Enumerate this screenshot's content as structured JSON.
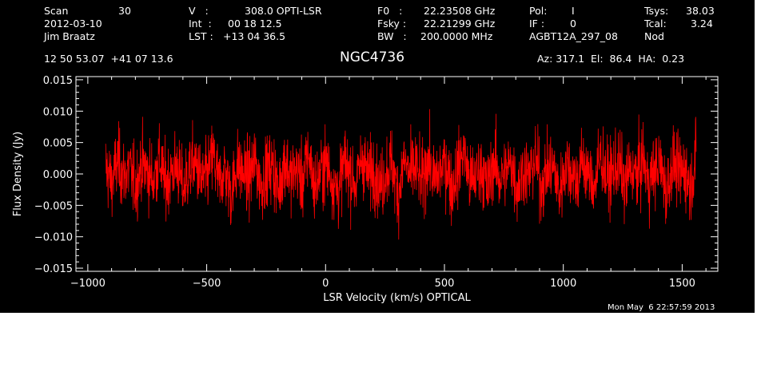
{
  "header": {
    "scan_label": "Scan",
    "scan_value": "30",
    "date": "2012-03-10",
    "observer": "Jim Braatz",
    "coords": "12 50 53.07  +41 07 13.6",
    "v_label": "V   :",
    "v_value": "308.0 OPTI-LSR",
    "int_label": "Int  :",
    "int_value": "00 18 12.5",
    "lst_label": "LST :",
    "lst_value": "+13 04 36.5",
    "f0_label": "F0   :",
    "f0_value": "22.23508 GHz",
    "fsky_label": "Fsky :",
    "fsky_value": "22.21299 GHz",
    "bw_label": "BW   :",
    "bw_value": "200.0000 MHz",
    "pol_label": "Pol:",
    "pol_value": "I",
    "if_label": "IF :",
    "if_value": "0",
    "project": "AGBT12A_297_08",
    "tsys_label": "Tsys:",
    "tsys_value": "38.03",
    "tcal_label": "Tcal:",
    "tcal_value": "3.24",
    "mode": "Nod",
    "pointing": "Az: 317.1  El:  86.4  HA:  0.23"
  },
  "timestamp": "Mon May  6 22:57:59 2013",
  "colors": {
    "background": "#000000",
    "axes": "#ffffff",
    "series": "#ff0000"
  },
  "chart_data": {
    "type": "line",
    "title": "NGC4736",
    "xlabel": "LSR Velocity (km/s) OPTICAL",
    "ylabel": "Flux Density (Jy)",
    "xlim": [
      -1050,
      1650
    ],
    "ylim": [
      -0.0155,
      0.0155
    ],
    "xticks": [
      -1000,
      -500,
      0,
      500,
      1000,
      1500
    ],
    "xtick_labels": [
      "−1000",
      "−500",
      "0",
      "500",
      "1000",
      "1500"
    ],
    "yticks": [
      -0.015,
      -0.01,
      -0.005,
      0.0,
      0.005,
      0.01,
      0.015
    ],
    "ytick_labels": [
      "−0.015",
      "−0.010",
      "−0.005",
      "0.000",
      "0.005",
      "0.010",
      "0.015"
    ],
    "grid": false,
    "series": [
      {
        "x_start": -925,
        "x_end": 1560,
        "description_noise_sigma": 0.0033,
        "values": [
          0.0031,
          -0.0042,
          0.0058,
          -0.0007,
          0.0022,
          -0.0061,
          0.0045,
          0.0012,
          -0.0028,
          0.0067,
          -0.0049,
          0.0008,
          0.0036,
          -0.0073,
          0.0019,
          0.0054,
          -0.0031,
          -0.0012,
          0.0088,
          -0.0046,
          0.0027,
          -0.0095,
          0.0041,
          0.0006,
          -0.0022,
          0.0063,
          -0.0057,
          0.0014,
          0.0039,
          -0.0084,
          0.0071,
          -0.0018,
          0.0025,
          -0.0039,
          0.0102,
          -0.0066,
          0.0011,
          0.0047,
          -0.0029,
          -0.0078,
          0.0056,
          0.0003,
          -0.0052,
          0.0084,
          -0.0015,
          0.0033,
          -0.0069,
          0.0021,
          0.0049,
          -0.0101,
          0.0062,
          -0.0008,
          0.0029,
          -0.0047,
          0.0076,
          -0.0034,
          0.0009,
          0.0058,
          -0.0064,
          0.0017,
          0.0112,
          -0.0041,
          -0.0016,
          0.0038,
          -0.0082,
          0.0067,
          -0.0024,
          0.0004,
          0.0051,
          -0.0071,
          0.0028,
          -0.0009,
          0.0079,
          -0.0055,
          0.0013,
          0.0035,
          -0.0091,
          0.0044,
          0.0022,
          -0.0037,
          0.0061,
          -0.0014,
          -0.0048,
          0.0089,
          -0.0027,
          0.0007,
          0.0053,
          -0.0068,
          0.0031,
          -0.0019,
          0.0074,
          -0.0044,
          0.0016,
          0.0042,
          -0.0087,
          0.0059,
          -0.0005,
          0.0026,
          -0.0058,
          0.0097
        ]
      }
    ]
  }
}
